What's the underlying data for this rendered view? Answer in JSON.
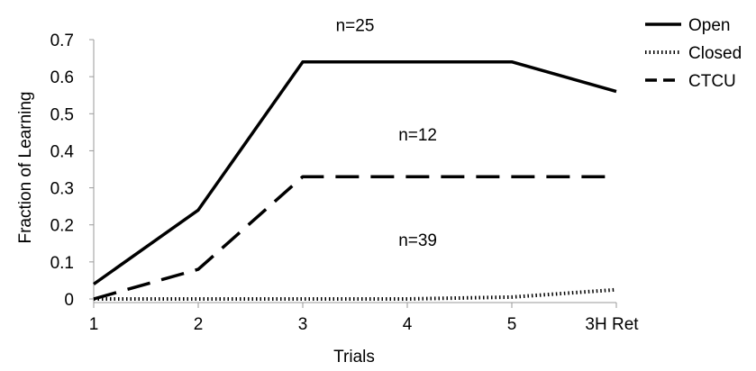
{
  "chart_data": {
    "type": "line",
    "title": "",
    "xlabel": "Trials",
    "ylabel": "Fraction of Learning",
    "categories": [
      "1",
      "2",
      "3",
      "4",
      "5",
      "3H Ret"
    ],
    "ylim": [
      0,
      0.7
    ],
    "yticks": [
      "0",
      "0.1",
      "0.2",
      "0.3",
      "0.4",
      "0.5",
      "0.6",
      "0.7"
    ],
    "grid": false,
    "legend_position": "top-right",
    "series": [
      {
        "name": "Open",
        "style": "solid",
        "values": [
          0.04,
          0.24,
          0.64,
          0.64,
          0.64,
          0.56
        ]
      },
      {
        "name": "Closed",
        "style": "dotted",
        "values": [
          0.0,
          0.0,
          0.0,
          0.0,
          0.005,
          0.025
        ]
      },
      {
        "name": "CTCU",
        "style": "dashed",
        "values": [
          0.0,
          0.08,
          0.33,
          0.33,
          0.33,
          0.33
        ]
      }
    ],
    "annotations": [
      {
        "text": "n=25",
        "x": "3.5",
        "y": 0.74
      },
      {
        "text": "n=12",
        "x": "4.1",
        "y": 0.445
      },
      {
        "text": "n=39",
        "x": "4.1",
        "y": 0.16
      }
    ]
  }
}
